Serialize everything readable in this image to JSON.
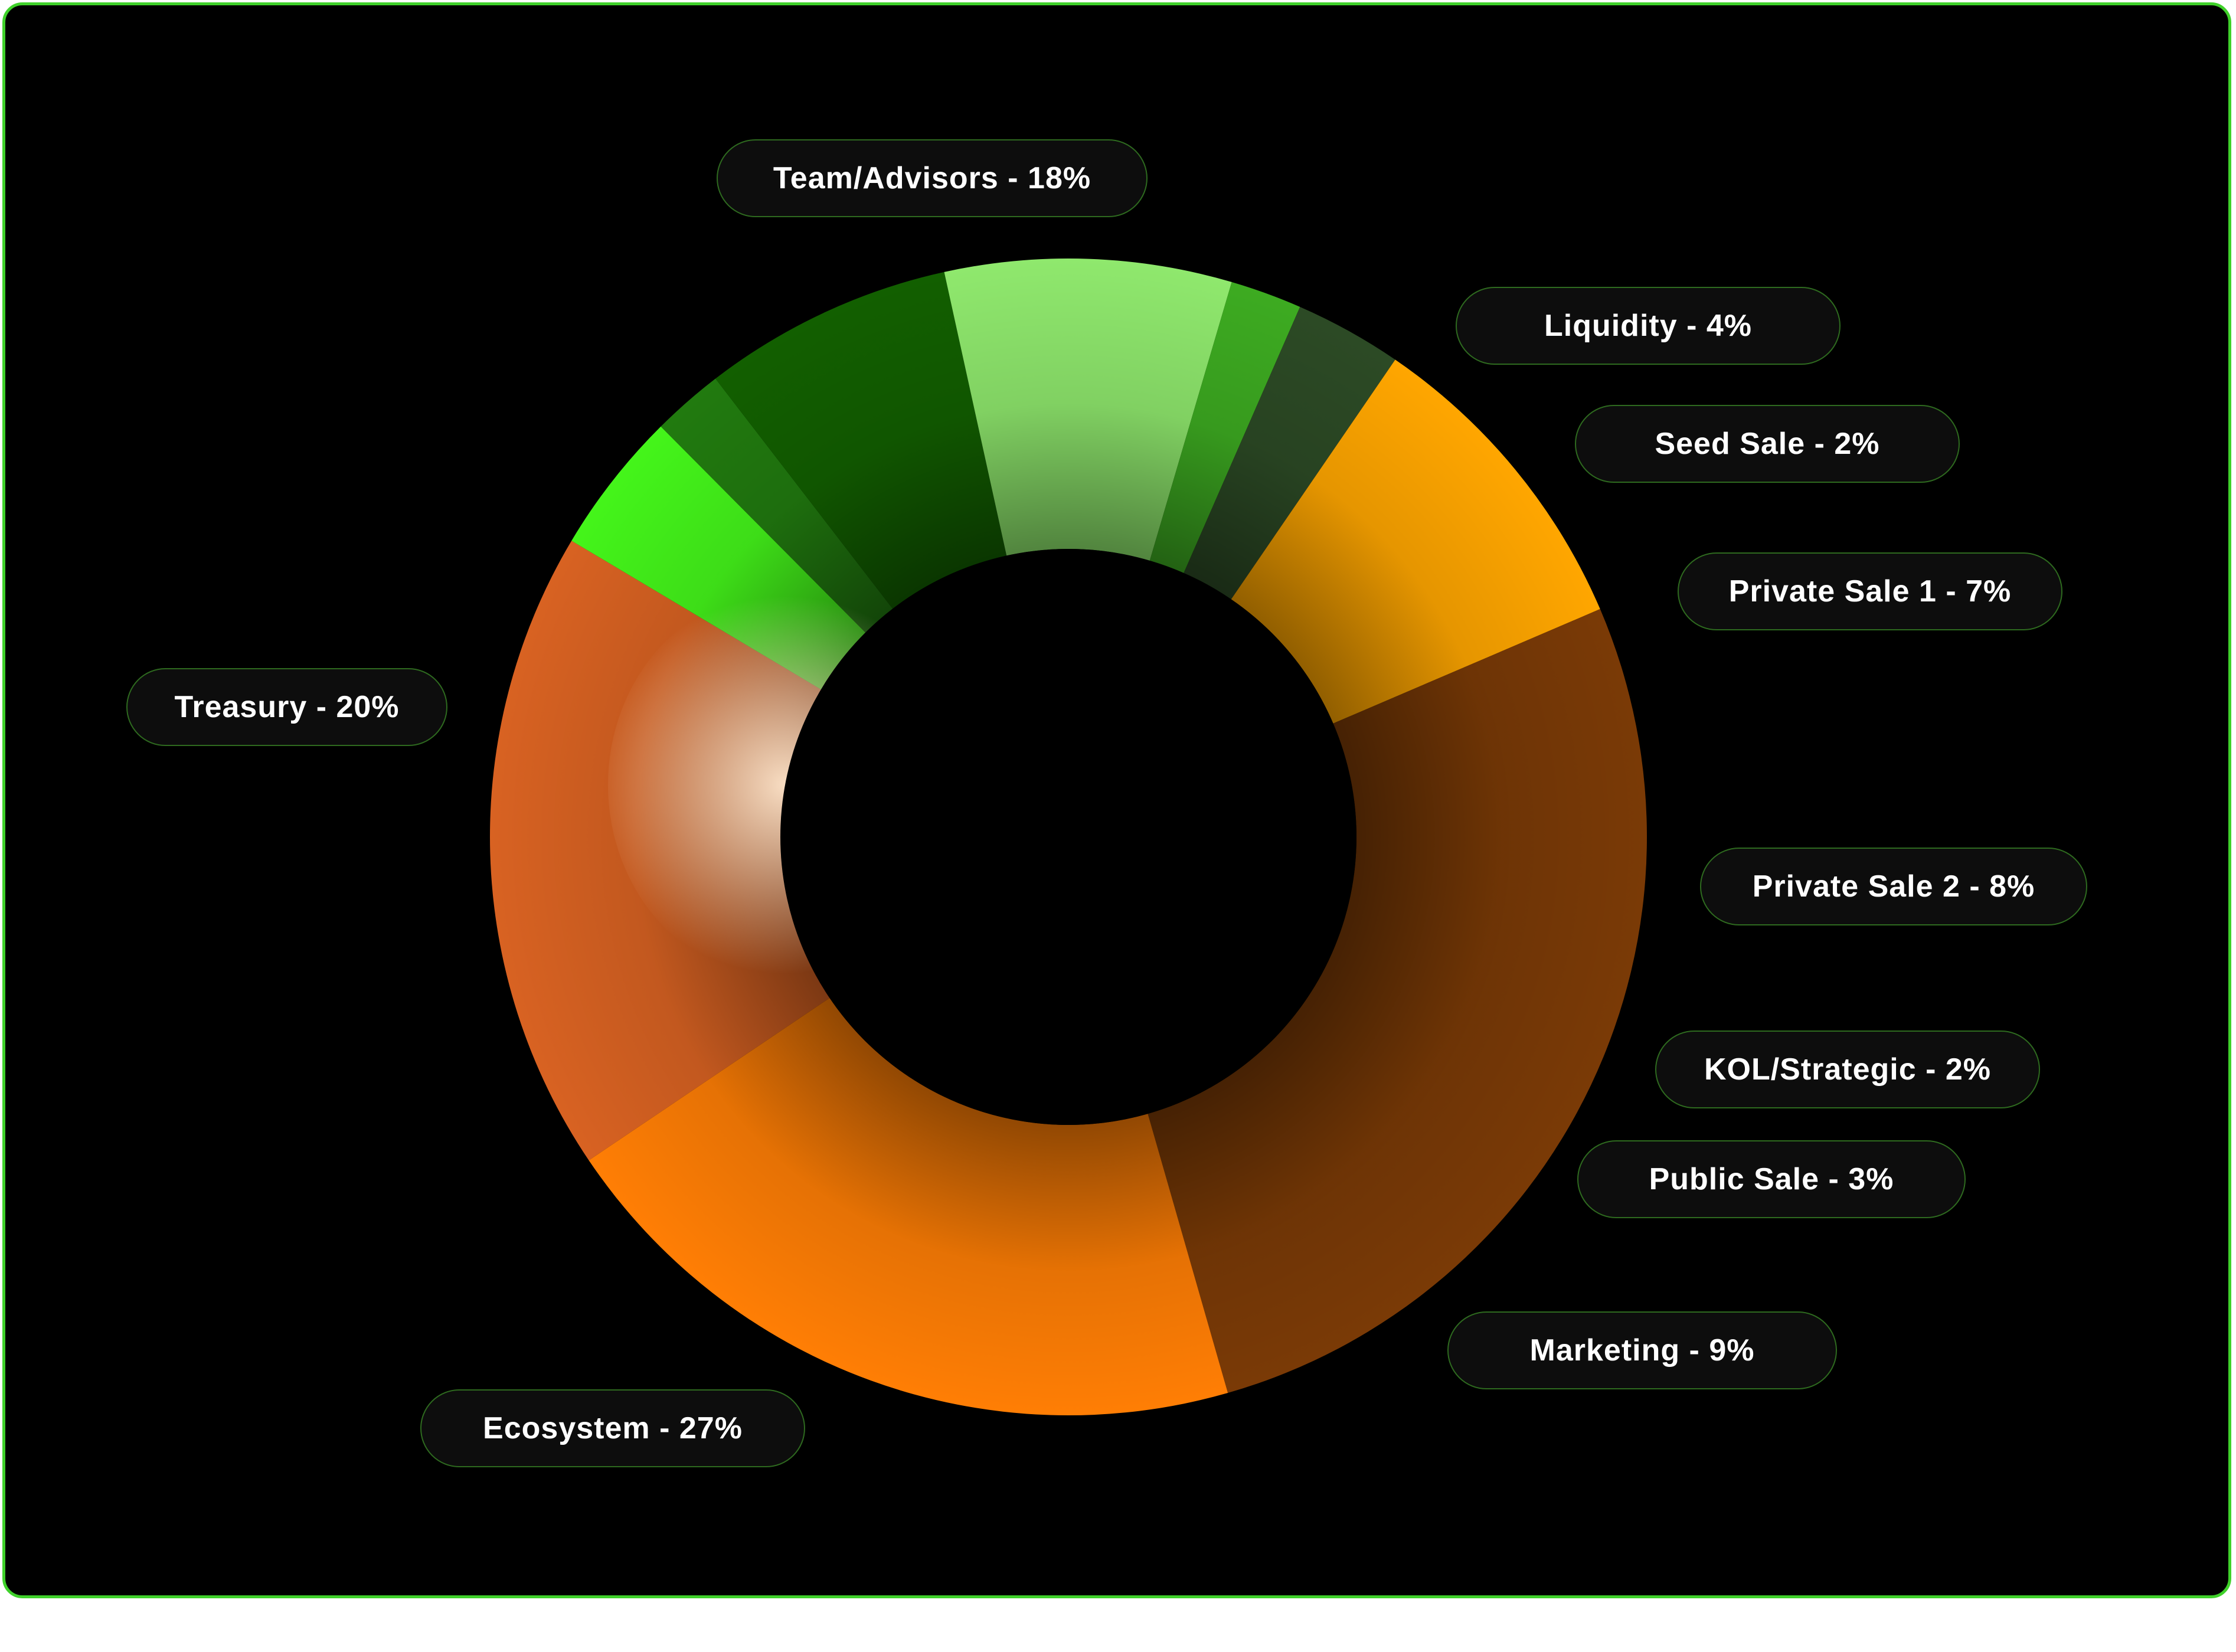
{
  "chart_data": {
    "type": "pie",
    "donut": true,
    "legend_placement": "labels around donut",
    "title": "",
    "slices": [
      {
        "name": "Team/Advisors",
        "value": 18,
        "label": "Team/Advisors - 18%",
        "color": "#d86222"
      },
      {
        "name": "Liquidity",
        "value": 4,
        "label": "Liquidity - 4%",
        "color": "#44f51a"
      },
      {
        "name": "Seed Sale",
        "value": 2,
        "label": "Seed Sale - 2%",
        "color": "#217a0f"
      },
      {
        "name": "Private Sale 1",
        "value": 7,
        "label": "Private Sale 1 - 7%",
        "color": "#125f00"
      },
      {
        "name": "Private Sale 2",
        "value": 8,
        "label": "Private Sale 2 - 8%",
        "color": "#8fe86d"
      },
      {
        "name": "KOL/Strategic",
        "value": 2,
        "label": "KOL/Strategic - 2%",
        "color": "#3dab21"
      },
      {
        "name": "Public Sale",
        "value": 3,
        "label": "Public Sale - 3%",
        "color": "#2c4a25"
      },
      {
        "name": "Marketing",
        "value": 9,
        "label": "Marketing - 9%",
        "color": "#ffa600"
      },
      {
        "name": "Ecosystem",
        "value": 27,
        "label": "Ecosystem - 27%",
        "color": "#7a3a06"
      },
      {
        "name": "Treasury",
        "value": 20,
        "label": "Treasury - 20%",
        "color": "#ff7e05"
      }
    ]
  }
}
